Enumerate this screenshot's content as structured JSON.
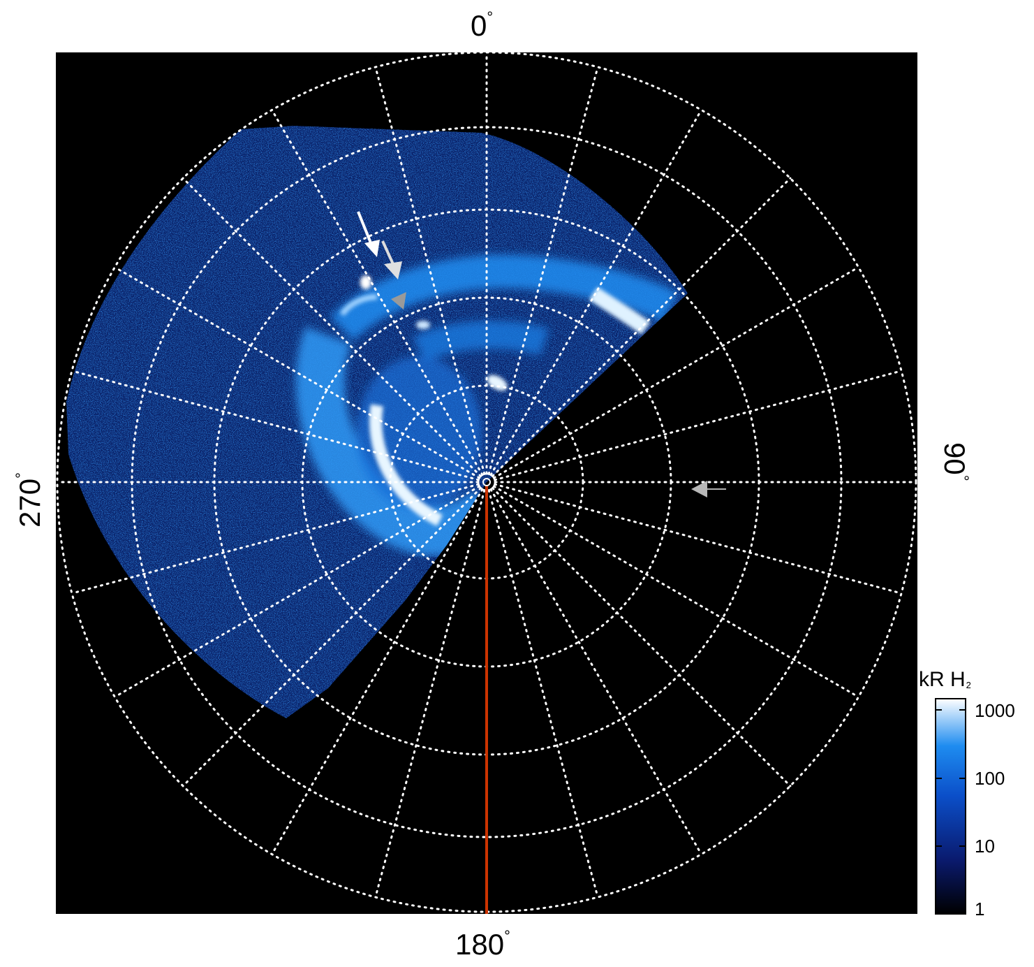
{
  "figure": {
    "colorbar": {
      "title_main": "kR H",
      "title_sub": "2",
      "ticks": [
        "1000",
        "100",
        "10",
        "1"
      ],
      "scale": "log",
      "colors": [
        "#000000",
        "#0a1a6e",
        "#0b4fc9",
        "#1e8cf0",
        "#ffffff"
      ]
    },
    "axis_labels": {
      "top": "0",
      "right": "90",
      "bottom": "180",
      "left": "270",
      "degree_symbol": "°"
    },
    "colors": {
      "background": "#000000",
      "grid": "#ffffff",
      "meridian_line": "#cc3300",
      "arrow_white": "#ffffff",
      "arrow_grey": "#b0b0b0"
    },
    "icons": [
      "arrow-icon",
      "arrowhead-icon",
      "pole-marker-icon"
    ]
  }
}
